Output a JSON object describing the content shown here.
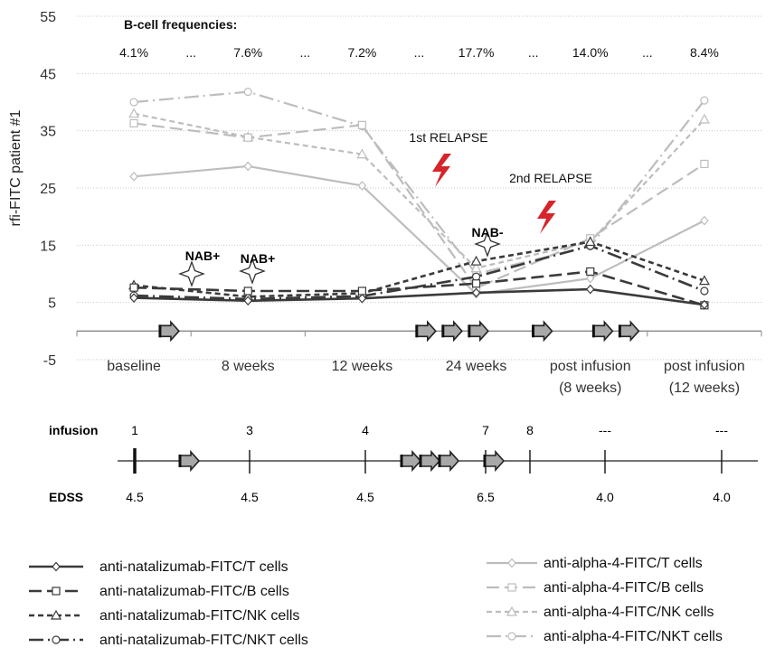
{
  "chart_data": {
    "type": "line",
    "title": "",
    "ylabel": "rfi-FITC patient #1",
    "xlabel": "",
    "ylim": [
      -5,
      55
    ],
    "yticks": [
      -5,
      5,
      15,
      25,
      35,
      45,
      55
    ],
    "grid": "horizontal",
    "categories": [
      "baseline",
      "8 weeks",
      "12 weeks",
      "24 weeks",
      "post infusion (8 weeks)",
      "post infusion (12 weeks)"
    ],
    "category_lines": [
      [
        "baseline"
      ],
      [
        "8 weeks"
      ],
      [
        "12 weeks"
      ],
      [
        "24 weeks"
      ],
      [
        "post infusion",
        "(8 weeks)"
      ],
      [
        "post infusion",
        "(12 weeks)"
      ]
    ],
    "series": [
      {
        "name": "anti-natalizumab-FITC/T cells",
        "color": "#3a3a3a",
        "dash": "solid",
        "marker": "diamond",
        "values": [
          5.8,
          5.3,
          5.7,
          6.7,
          7.3,
          4.6
        ]
      },
      {
        "name": "anti-natalizumab-FITC/B cells",
        "color": "#3a3a3a",
        "dash": "long",
        "marker": "square",
        "values": [
          7.6,
          7.0,
          7.0,
          8.3,
          10.4,
          4.5
        ]
      },
      {
        "name": "anti-natalizumab-FITC/NK cells",
        "color": "#3a3a3a",
        "dash": "short",
        "marker": "triangle",
        "values": [
          8.0,
          6.0,
          6.6,
          12.2,
          15.6,
          8.8
        ]
      },
      {
        "name": "anti-natalizumab-FITC/NKT cells",
        "color": "#3a3a3a",
        "dash": "longdot",
        "marker": "circle",
        "values": [
          6.2,
          5.6,
          6.1,
          9.5,
          14.9,
          7.0
        ]
      },
      {
        "name": "anti-alpha-4-FITC/T cells",
        "color": "#bdbdbd",
        "dash": "solid",
        "marker": "diamond",
        "values": [
          27.0,
          28.8,
          25.4,
          6.5,
          9.2,
          19.3
        ]
      },
      {
        "name": "anti-alpha-4-FITC/B cells",
        "color": "#bdbdbd",
        "dash": "long",
        "marker": "square",
        "values": [
          36.3,
          33.8,
          36.0,
          7.5,
          16.2,
          29.2
        ]
      },
      {
        "name": "anti-alpha-4-FITC/NK cells",
        "color": "#bdbdbd",
        "dash": "short",
        "marker": "triangle",
        "values": [
          38.0,
          33.9,
          30.9,
          11.0,
          15.6,
          37.0
        ]
      },
      {
        "name": "anti-alpha-4-FITC/NKT cells",
        "color": "#bdbdbd",
        "dash": "longdot",
        "marker": "circle",
        "values": [
          40.0,
          41.8,
          35.8,
          10.0,
          14.8,
          40.3
        ]
      }
    ],
    "annotations": {
      "bcell_title": "B-cell frequencies:",
      "bcell_values": [
        "4.1%",
        "...",
        "7.6%",
        "...",
        "7.2%",
        "...",
        "17.7%",
        "...",
        "14.0%",
        "...",
        "8.4%"
      ],
      "relapse1": "1st RELAPSE",
      "relapse2": "2nd RELAPSE",
      "nab_plus": "NAB+",
      "nab_minus": "NAB-"
    },
    "infusion_arrows_x": [
      0.8,
      3.05,
      3.28,
      3.51,
      4.07,
      4.6,
      4.83
    ],
    "legend": "bottom"
  },
  "timeline": {
    "infusion_label": "infusion",
    "infusion_numbers": [
      "1",
      "3",
      "4",
      "7",
      "8",
      "---",
      "---"
    ],
    "edss_label": "EDSS",
    "edss_values": [
      "4.5",
      "4.5",
      "4.5",
      "6.5",
      "4.0",
      "4.0"
    ]
  },
  "colors": {
    "dark": "#3a3a3a",
    "light": "#bdbdbd",
    "relapse": "#d6242b",
    "arrow_fill": "#a8a8a8"
  }
}
